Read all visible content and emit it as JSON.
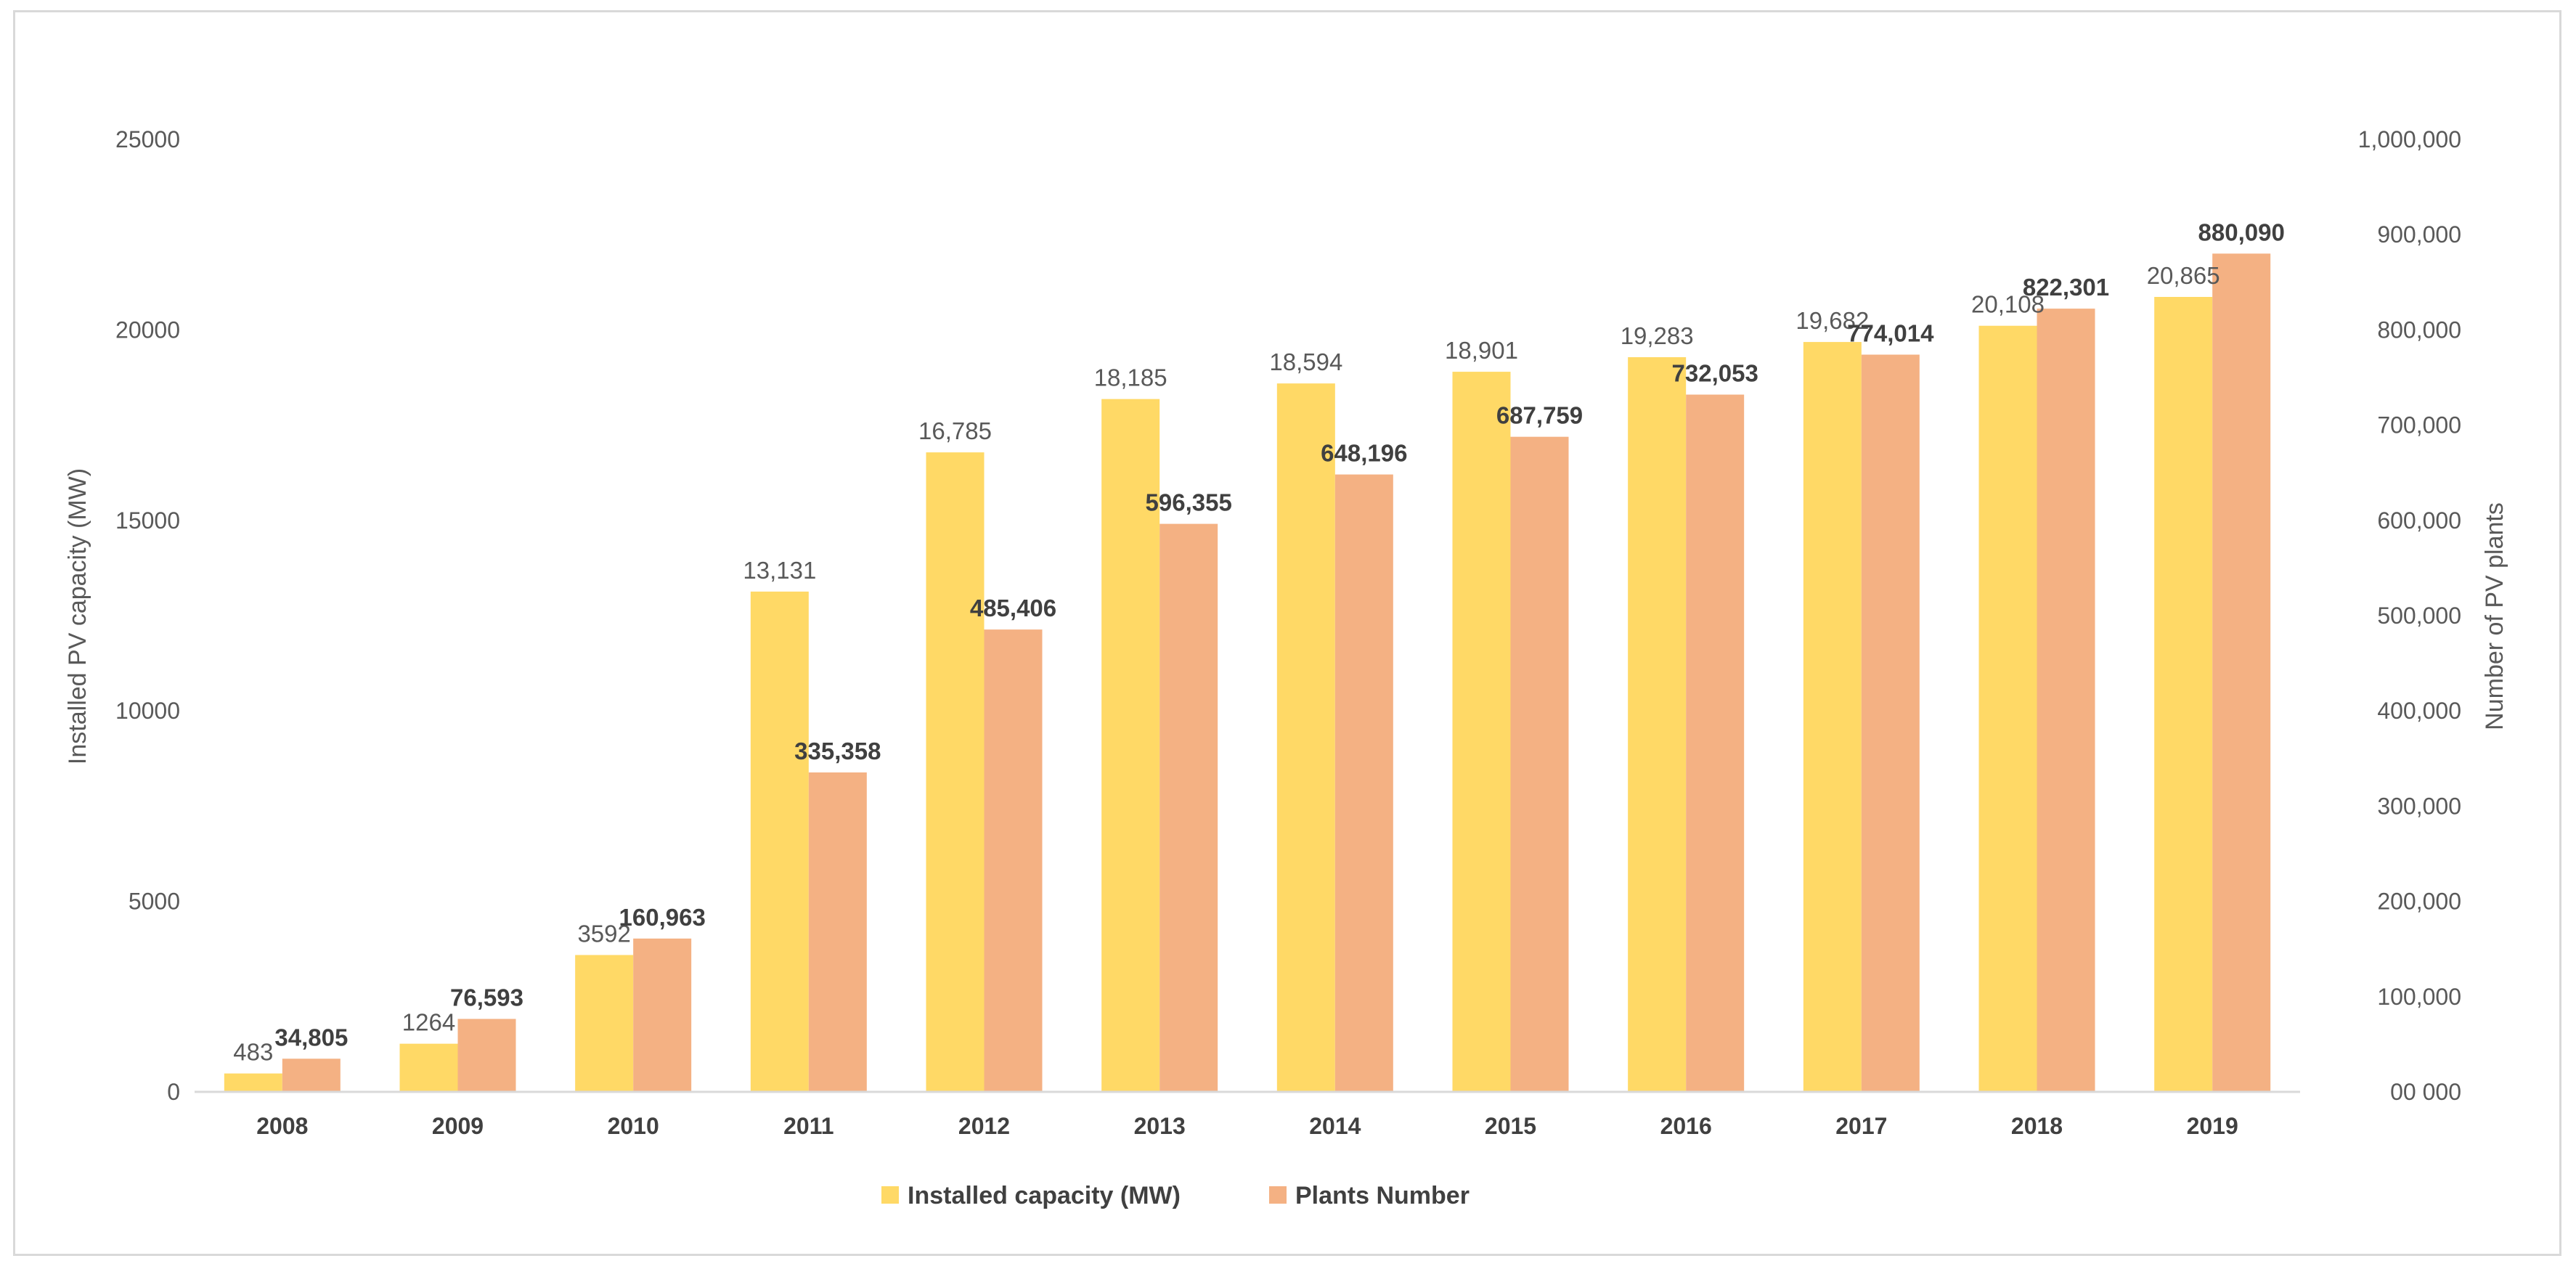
{
  "chart_data": {
    "type": "bar",
    "categories": [
      "2008",
      "2009",
      "2010",
      "2011",
      "2012",
      "2013",
      "2014",
      "2015",
      "2016",
      "2017",
      "2018",
      "2019"
    ],
    "series": [
      {
        "name": "Installed capacity (MW)",
        "axis": "left",
        "color": "#ffd966",
        "values": [
          483,
          1264,
          3592,
          13131,
          16785,
          18185,
          18594,
          18901,
          19283,
          19682,
          20108,
          20865
        ],
        "labels": [
          "483",
          "1264",
          "3592",
          "13,131",
          "16,785",
          "18,185",
          "18,594",
          "18,901",
          "19,283",
          "19,682",
          "20,108",
          "20,865"
        ]
      },
      {
        "name": "Plants Number",
        "axis": "right",
        "color": "#f4b183",
        "values": [
          34805,
          76593,
          160963,
          335358,
          485406,
          596355,
          648196,
          687759,
          732053,
          774014,
          822301,
          880090
        ],
        "labels": [
          "34,805",
          "76,593",
          "160,963",
          "335,358",
          "485,406",
          "596,355",
          "648,196",
          "687,759",
          "732,053",
          "774,014",
          "822,301",
          "880,090"
        ]
      }
    ],
    "ylabel_left": "Installed PV capacity (MW)",
    "ylabel_right": "Number of PV plants",
    "ylim_left": [
      0,
      25000
    ],
    "ylim_right": [
      0,
      1000000
    ],
    "yticks_left": [
      "0",
      "5000",
      "10000",
      "15000",
      "20000",
      "25000"
    ],
    "yticks_right": [
      "00 000",
      "100,000",
      "200,000",
      "300,000",
      "400,000",
      "500,000",
      "600,000",
      "700,000",
      "800,000",
      "900,000",
      "1,000,000"
    ],
    "legend": [
      "Installed capacity (MW)",
      "Plants Number"
    ],
    "legend_position": "bottom",
    "grid": false
  }
}
